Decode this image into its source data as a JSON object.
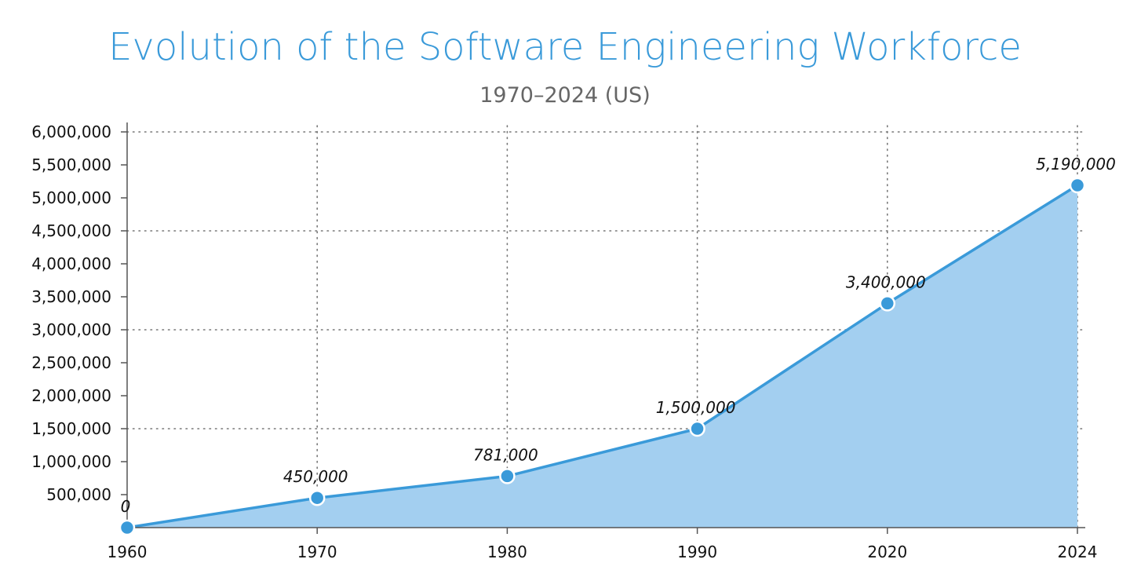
{
  "chart_data": {
    "type": "area",
    "title": "Evolution of the Software Engineering Workforce",
    "subtitle": "1970–2024 (US)",
    "xlabel": "",
    "ylabel": "",
    "x": [
      "1960",
      "1970",
      "1980",
      "1990",
      "2020",
      "2024"
    ],
    "values": [
      0,
      450000,
      781000,
      1500000,
      3400000,
      5190000
    ],
    "data_labels": [
      "0",
      "450,000",
      "781,000",
      "1,500,000",
      "3,400,000",
      "5,190,000"
    ],
    "ylim": [
      0,
      6000000
    ],
    "yticks": [
      500000,
      1000000,
      1500000,
      2000000,
      2500000,
      3000000,
      3500000,
      4000000,
      4500000,
      5000000,
      5500000,
      6000000
    ],
    "ytick_labels": [
      "500,000",
      "1,000,000",
      "1,500,000",
      "2,000,000",
      "2,500,000",
      "3,000,000",
      "3,500,000",
      "4,000,000",
      "4,500,000",
      "5,000,000",
      "5,500,000",
      "6,000,000"
    ],
    "grid": "dotted on even y ticks and x categories",
    "colors": {
      "title": "#3a9ad9",
      "subtitle": "#666666",
      "line": "#3a9ad9",
      "fill": "#a3cff0",
      "marker": "#3a9ad9",
      "marker_stroke": "#ffffff",
      "axis": "#555555",
      "grid": "#777777"
    }
  }
}
